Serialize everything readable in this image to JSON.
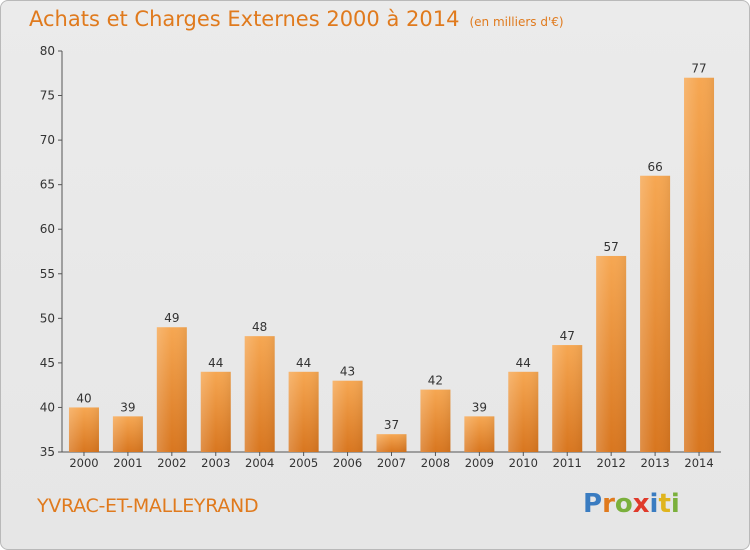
{
  "header": {
    "title": "Achats et Charges Externes 2000 à 2014",
    "subtitle": "(en milliers d'€)"
  },
  "footer": {
    "commune": "YVRAC-ET-MALLEYRAND",
    "logo_letters": [
      "P",
      "r",
      "o",
      "x",
      "i",
      "t",
      "i"
    ],
    "logo_colors": [
      "#3a7cc1",
      "#e07a1d",
      "#7bb03c",
      "#e03a2b",
      "#3a7cc1",
      "#e0b41d",
      "#7bb03c"
    ]
  },
  "colors": {
    "bar_top": "#f6a752",
    "bar_bottom": "#d8761f",
    "text": "#333333",
    "accent": "#e07a1d"
  },
  "chart_data": {
    "type": "bar",
    "title": "Achats et Charges Externes 2000 à 2014",
    "subtitle": "(en milliers d'€)",
    "categories": [
      "2000",
      "2001",
      "2002",
      "2003",
      "2004",
      "2005",
      "2006",
      "2007",
      "2008",
      "2009",
      "2010",
      "2011",
      "2012",
      "2013",
      "2014"
    ],
    "values": [
      40,
      39,
      49,
      44,
      48,
      44,
      43,
      37,
      42,
      39,
      44,
      47,
      57,
      66,
      77
    ],
    "ylim": [
      35,
      80
    ],
    "yticks": [
      35,
      40,
      45,
      50,
      55,
      60,
      65,
      70,
      75,
      80
    ],
    "grid": false,
    "xlabel": "",
    "ylabel": ""
  }
}
